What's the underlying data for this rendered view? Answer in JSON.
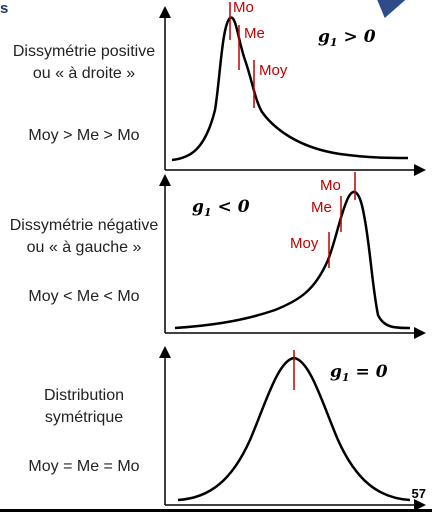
{
  "header": {
    "text": "s"
  },
  "page_number": "57",
  "panels": [
    {
      "left_lines": [
        "Dissymétrie positive",
        "ou « à droite »"
      ],
      "relation": "Moy > Me > Mo",
      "g_label": "g",
      "g_sub": "1",
      "g_rel": "> 0",
      "markers": {
        "mo": "Mo",
        "me": "Me",
        "moy": "Moy"
      }
    },
    {
      "left_lines": [
        "Dissymétrie négative",
        "ou « à gauche »"
      ],
      "relation": "Moy < Me < Mo",
      "g_label": "g",
      "g_sub": "1",
      "g_rel": "< 0",
      "markers": {
        "mo": "Mo",
        "me": "Me",
        "moy": "Moy"
      }
    },
    {
      "left_lines": [
        "Distribution",
        "symétrique"
      ],
      "relation": "Moy = Me = Mo",
      "g_label": "g",
      "g_sub": "1",
      "g_rel": "= 0",
      "markers": {}
    }
  ]
}
